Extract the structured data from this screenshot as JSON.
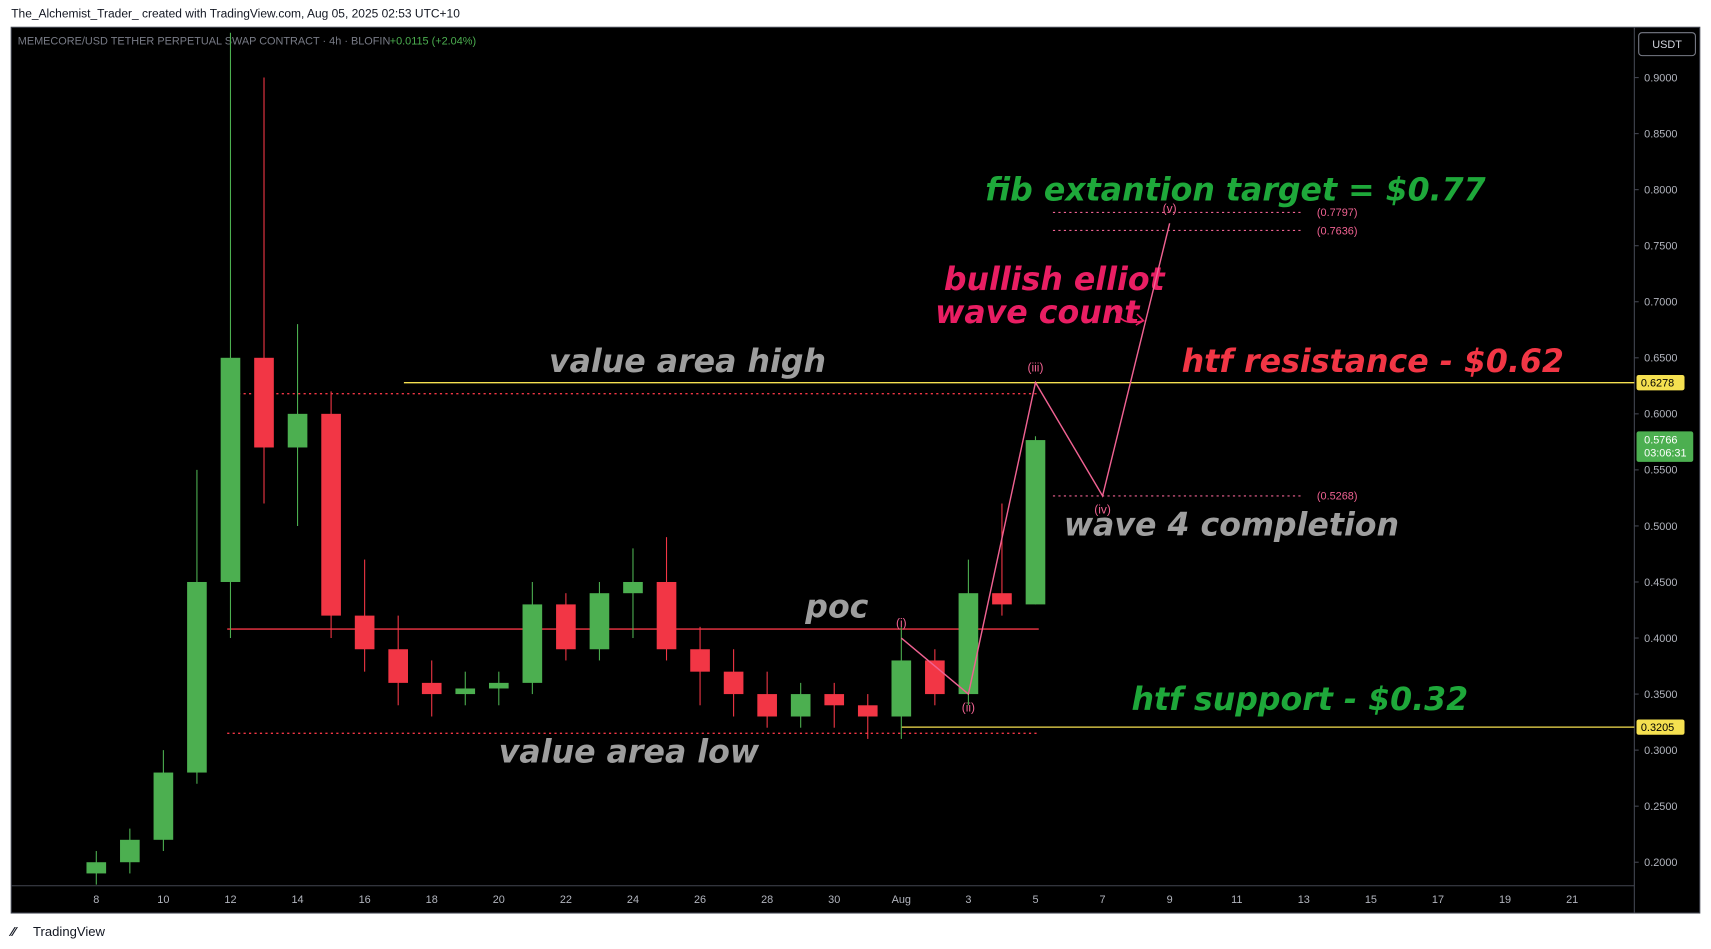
{
  "header": {
    "attribution": "The_Alchemist_Trader_ created with TradingView.com, Aug 05, 2025 02:53 UTC+10",
    "footer": "TradingView"
  },
  "chart_data": {
    "type": "candlestick",
    "symbol": "MEMECORE/USD TETHER PERPETUAL SWAP CONTRACT · 4h · BLOFIN",
    "change": "+0.0115 (+2.04%)",
    "currency": "USDT",
    "countdown": "03:06:31",
    "categories": [
      null,
      "8",
      null,
      "10",
      null,
      "12",
      null,
      "14",
      null,
      "16",
      null,
      "18",
      null,
      "20",
      null,
      "22",
      null,
      "24",
      null,
      "26",
      null,
      "28",
      null,
      "30",
      null,
      "Aug",
      null,
      "3",
      null,
      "5",
      null,
      "7",
      null,
      "9",
      null,
      "11",
      null,
      "13",
      null,
      "15",
      null,
      "17",
      null,
      "19",
      null,
      "21"
    ],
    "open": [
      null,
      0.19,
      0.2,
      0.22,
      0.28,
      0.45,
      0.65,
      0.57,
      0.6,
      0.42,
      0.39,
      0.36,
      0.35,
      0.355,
      0.36,
      0.43,
      0.39,
      0.44,
      0.45,
      0.39,
      0.37,
      0.35,
      0.33,
      0.35,
      0.34,
      0.33,
      0.38,
      0.35,
      0.44,
      0.43,
      null,
      null,
      null,
      null,
      null,
      null,
      null,
      null,
      null,
      null,
      null,
      null,
      null,
      null,
      null,
      null
    ],
    "high": [
      null,
      0.21,
      0.23,
      0.3,
      0.55,
      0.94,
      0.9,
      0.68,
      0.62,
      0.47,
      0.42,
      0.38,
      0.37,
      0.37,
      0.45,
      0.44,
      0.45,
      0.48,
      0.49,
      0.41,
      0.39,
      0.37,
      0.36,
      0.36,
      0.35,
      0.41,
      0.39,
      0.47,
      0.52,
      0.58,
      null,
      null,
      null,
      null,
      null,
      null,
      null,
      null,
      null,
      null,
      null,
      null,
      null,
      null,
      null,
      null
    ],
    "low": [
      null,
      0.18,
      0.19,
      0.21,
      0.27,
      0.4,
      0.52,
      0.5,
      0.4,
      0.37,
      0.34,
      0.33,
      0.34,
      0.34,
      0.35,
      0.38,
      0.38,
      0.4,
      0.38,
      0.34,
      0.33,
      0.32,
      0.32,
      0.32,
      0.31,
      0.31,
      0.34,
      0.34,
      0.42,
      0.43,
      null,
      null,
      null,
      null,
      null,
      null,
      null,
      null,
      null,
      null,
      null,
      null,
      null,
      null,
      null,
      null
    ],
    "close": [
      null,
      0.2,
      0.22,
      0.28,
      0.45,
      0.65,
      0.57,
      0.6,
      0.42,
      0.39,
      0.36,
      0.35,
      0.355,
      0.36,
      0.43,
      0.39,
      0.44,
      0.45,
      0.39,
      0.37,
      0.35,
      0.33,
      0.35,
      0.34,
      0.33,
      0.38,
      0.35,
      0.44,
      0.43,
      0.5766,
      null,
      null,
      null,
      null,
      null,
      null,
      null,
      null,
      null,
      null,
      null,
      null,
      null,
      null,
      null,
      null
    ],
    "up_color": "#4caf50",
    "down_color": "#f23645",
    "ylim": [
      0.18,
      0.94
    ],
    "yticks": [
      {
        "value": 0.2,
        "label": "0.2000"
      },
      {
        "value": 0.25,
        "label": "0.2500"
      },
      {
        "value": 0.3,
        "label": "0.3000"
      },
      {
        "value": 0.35,
        "label": "0.3500"
      },
      {
        "value": 0.4,
        "label": "0.4000"
      },
      {
        "value": 0.45,
        "label": "0.4500"
      },
      {
        "value": 0.5,
        "label": "0.5000"
      },
      {
        "value": 0.55,
        "label": "0.5500"
      },
      {
        "value": 0.6,
        "label": "0.6000"
      },
      {
        "value": 0.65,
        "label": "0.6500"
      },
      {
        "value": 0.7,
        "label": "0.7000"
      },
      {
        "value": 0.75,
        "label": "0.7500"
      },
      {
        "value": 0.8,
        "label": "0.8000"
      },
      {
        "value": 0.85,
        "label": "0.8500"
      },
      {
        "value": 0.9,
        "label": "0.9000"
      }
    ],
    "grid": false,
    "levels": [
      {
        "value": 0.6278,
        "color": "#f5e050",
        "style": "solid",
        "axis_tag": true
      },
      {
        "value": 0.3205,
        "color": "#f5e050",
        "style": "solid",
        "axis_tag": true
      },
      {
        "value": 0.408,
        "color": "#f23645",
        "style": "solid",
        "axis_tag": false
      },
      {
        "value": 0.618,
        "color": "#f23645",
        "style": "dotted",
        "axis_tag": false
      },
      {
        "value": 0.315,
        "color": "#f23645",
        "style": "dotted",
        "axis_tag": false
      }
    ],
    "fib_levels": [
      {
        "value": 0.7797,
        "label": "(0.7797)"
      },
      {
        "value": 0.7636,
        "label": "(0.7636)"
      },
      {
        "value": 0.5268,
        "label": "(0.5268)"
      }
    ],
    "wave": {
      "color": "#f06292",
      "points": [
        {
          "label": "(i)",
          "x": "Aug",
          "value": 0.4
        },
        {
          "label": "(ii)",
          "x": "3",
          "value": 0.35
        },
        {
          "label": "(iii)",
          "x": "5",
          "value": 0.628
        },
        {
          "label": "(iv)",
          "x": "7",
          "value": 0.5268
        },
        {
          "label": "(v)",
          "x": "9",
          "value": 0.77
        }
      ]
    },
    "annotations": [
      "fib extantion target = $0.77",
      "bullish elliot",
      "wave count",
      "value area high",
      "htf resistance - $0.62",
      "poc",
      "wave 4 completion",
      "htf support - $0.32",
      "value area low"
    ]
  }
}
